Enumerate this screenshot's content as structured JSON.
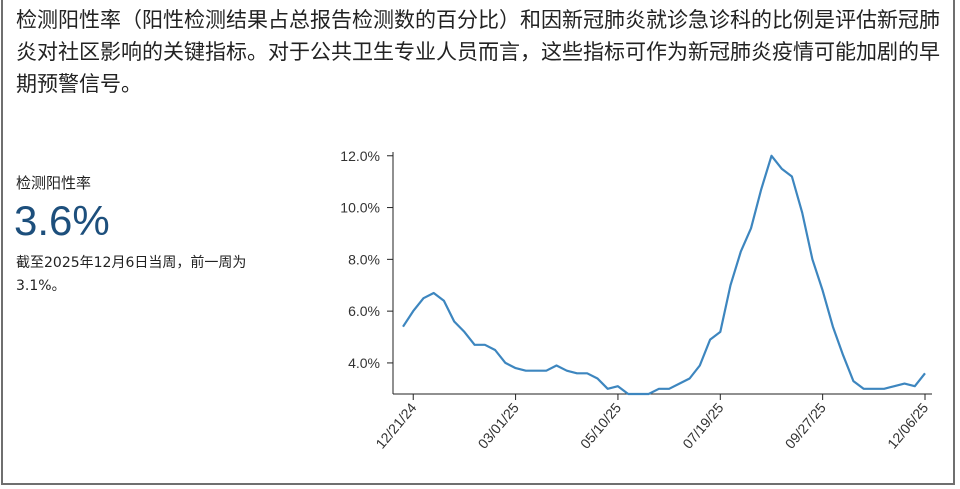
{
  "intro_text": "检测阳性率（阳性检测结果占总报告检测数的百分比）和因新冠肺炎就诊急诊科的比例是评估新冠肺炎对社区影响的关键指标。对于公共卫生专业人员而言，这些指标可作为新冠肺炎疫情可能加剧的早期预警信号。",
  "metric": {
    "label": "检测阳性率",
    "value": "3.6%",
    "note": "截至2025年12月6日当周，前一周为3.1%。"
  },
  "colors": {
    "line": "#3d86bf",
    "value": "#1d4f7c",
    "axis": "#222222"
  },
  "chart_data": {
    "type": "line",
    "title": "",
    "xlabel": "",
    "ylabel": "",
    "ylim": [
      2.8,
      12.3
    ],
    "yticks": [
      "4.0%",
      "6.0%",
      "8.0%",
      "10.0%",
      "12.0%"
    ],
    "ytick_values": [
      4,
      6,
      8,
      10,
      12
    ],
    "xtick_labels": [
      "12/21/24",
      "03/01/25",
      "05/10/25",
      "07/19/25",
      "09/27/25",
      "12/06/25"
    ],
    "xtick_index": [
      2,
      12,
      22,
      32,
      42,
      52
    ],
    "grid": false,
    "series": [
      {
        "values": [
          5.4,
          6.0,
          6.5,
          6.7,
          6.4,
          5.6,
          5.2,
          4.7,
          4.7,
          4.5,
          4.0,
          3.8,
          3.7,
          3.7,
          3.7,
          3.9,
          3.7,
          3.6,
          3.6,
          3.4,
          3.0,
          3.1,
          2.8,
          2.8,
          2.8,
          3.0,
          3.0,
          3.2,
          3.4,
          3.9,
          4.9,
          5.2,
          7.0,
          8.3,
          9.2,
          10.7,
          12.0,
          11.5,
          11.2,
          9.8,
          8.0,
          6.8,
          5.4,
          4.3,
          3.3,
          3.0,
          3.0,
          3.0,
          3.1,
          3.2,
          3.1,
          3.6
        ]
      }
    ]
  }
}
